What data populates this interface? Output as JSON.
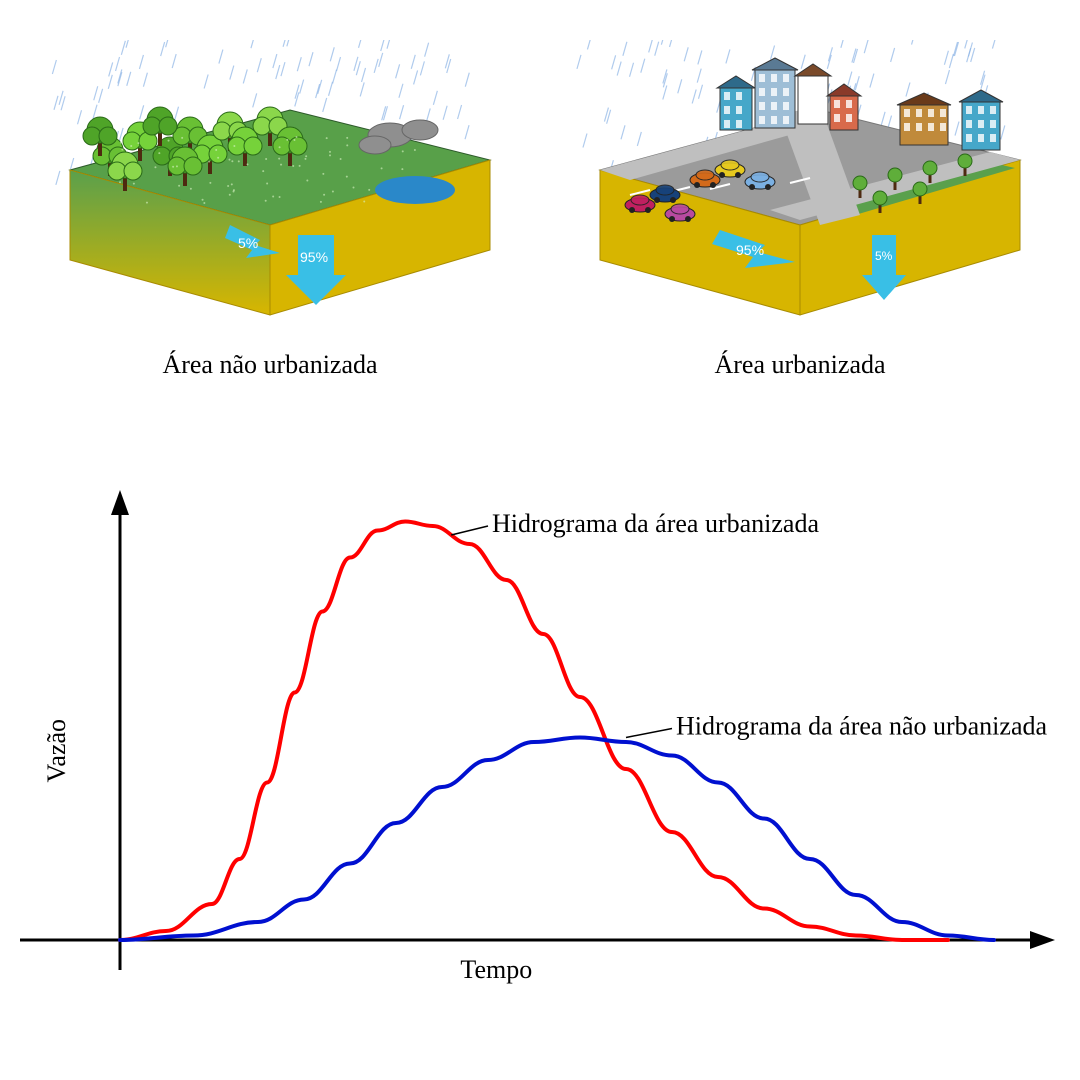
{
  "top": {
    "left": {
      "caption": "Área não urbanizada",
      "runoff_pct": "5%",
      "infiltration_pct": "95%",
      "ground_top_color": "#58a049",
      "ground_side_color": "#d7b500",
      "ground_gradient_top": "#5aa04c",
      "ground_gradient_bottom": "#d8b600",
      "tree_trunk_color": "#4e2a10",
      "tree_foliage_colors": [
        "#69c034",
        "#76d23a",
        "#4fa428",
        "#8bd74b"
      ],
      "rock_color": "#8f8f8f",
      "rain_color": "#8fb6e6",
      "arrow_color": "#39bfe6",
      "water_color": "#2a88c9"
    },
    "right": {
      "caption": "Área urbanizada",
      "runoff_pct": "95%",
      "infiltration_pct": "5%",
      "ground_top_color": "#9b9b9b",
      "ground_side_color": "#d7b500",
      "grass_patch_color": "#5aa04c",
      "road_color": "#9b9b9b",
      "building_colors": [
        "#9ebed6",
        "#c08a3b",
        "#d86a4b",
        "#46a7c9",
        "#ffffff"
      ],
      "car_colors": [
        "#c02060",
        "#17427a",
        "#d36a1a",
        "#e6c91f",
        "#7bb0e2",
        "#b84aa0"
      ],
      "rain_color": "#8fb6e6",
      "arrow_color": "#39bfe6"
    }
  },
  "chart": {
    "type": "line",
    "x_label": "Tempo",
    "y_label": "Vazão",
    "xlim": [
      0,
      100
    ],
    "ylim": [
      0,
      100
    ],
    "axis_color": "#000000",
    "axis_width": 3,
    "label_fontsize": 26,
    "curve_label_fontsize": 26,
    "background_color": "#ffffff",
    "series": [
      {
        "name": "urbanizada",
        "label": "Hidrograma  da área urbanizada",
        "color": "#ff0000",
        "width": 4,
        "label_x": 40,
        "label_y": 92,
        "leader_from": [
          36,
          90
        ],
        "leader_to": [
          40,
          92
        ],
        "points": [
          [
            0,
            0
          ],
          [
            5,
            2
          ],
          [
            10,
            8
          ],
          [
            13,
            18
          ],
          [
            16,
            35
          ],
          [
            19,
            55
          ],
          [
            22,
            73
          ],
          [
            25,
            85
          ],
          [
            28,
            91
          ],
          [
            31,
            93
          ],
          [
            34,
            92
          ],
          [
            38,
            88
          ],
          [
            42,
            80
          ],
          [
            46,
            68
          ],
          [
            50,
            54
          ],
          [
            55,
            38
          ],
          [
            60,
            24
          ],
          [
            65,
            14
          ],
          [
            70,
            7
          ],
          [
            75,
            3
          ],
          [
            80,
            1
          ],
          [
            85,
            0
          ],
          [
            90,
            0
          ]
        ]
      },
      {
        "name": "nao_urbanizada",
        "label": "Hidrograma  da área não urbanizada",
        "color": "#0010d0",
        "width": 4,
        "label_x": 60,
        "label_y": 47,
        "leader_from": [
          55,
          45
        ],
        "leader_to": [
          60,
          47
        ],
        "points": [
          [
            0,
            0
          ],
          [
            8,
            1
          ],
          [
            15,
            4
          ],
          [
            20,
            9
          ],
          [
            25,
            17
          ],
          [
            30,
            26
          ],
          [
            35,
            34
          ],
          [
            40,
            40
          ],
          [
            45,
            44
          ],
          [
            50,
            45
          ],
          [
            55,
            44
          ],
          [
            60,
            41
          ],
          [
            65,
            35
          ],
          [
            70,
            27
          ],
          [
            75,
            18
          ],
          [
            80,
            10
          ],
          [
            85,
            4
          ],
          [
            90,
            1
          ],
          [
            95,
            0
          ]
        ]
      }
    ]
  }
}
